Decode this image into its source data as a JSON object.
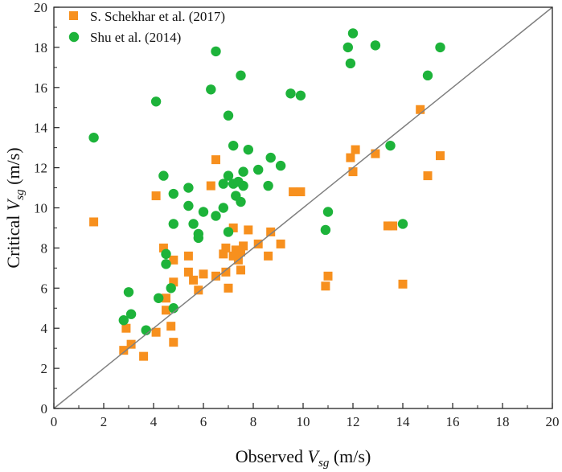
{
  "chart_data": {
    "type": "scatter",
    "title": "",
    "xlabel": {
      "prefix": "Observed ",
      "var": "V",
      "sub": "sg",
      "suffix": " (m/s)"
    },
    "ylabel": {
      "prefix": "Critical ",
      "var": "V",
      "sub": "sg",
      "suffix": " (m/s)"
    },
    "xlim": [
      0,
      20
    ],
    "ylim": [
      0,
      20
    ],
    "xticks": [
      0,
      2,
      4,
      6,
      8,
      10,
      12,
      14,
      16,
      18,
      20
    ],
    "yticks": [
      0,
      2,
      4,
      6,
      8,
      10,
      12,
      14,
      16,
      18,
      20
    ],
    "grid": false,
    "legend_position": "top-left",
    "reference_line": {
      "name": "1:1 line",
      "from": [
        0,
        0
      ],
      "to": [
        20,
        20
      ],
      "color": "#808080"
    },
    "series": [
      {
        "name": "S. Schekhar et al. (2017)",
        "marker": "square",
        "color": "#F7901E",
        "points": [
          [
            1.6,
            9.3
          ],
          [
            2.8,
            2.9
          ],
          [
            2.9,
            4.0
          ],
          [
            3.1,
            3.2
          ],
          [
            3.6,
            2.6
          ],
          [
            4.1,
            3.8
          ],
          [
            4.1,
            10.6
          ],
          [
            4.4,
            8.0
          ],
          [
            4.5,
            5.5
          ],
          [
            4.5,
            4.9
          ],
          [
            4.7,
            4.1
          ],
          [
            4.8,
            3.3
          ],
          [
            4.8,
            6.3
          ],
          [
            4.8,
            7.4
          ],
          [
            5.4,
            6.8
          ],
          [
            5.4,
            7.6
          ],
          [
            5.6,
            6.4
          ],
          [
            5.8,
            5.9
          ],
          [
            6.0,
            6.7
          ],
          [
            6.3,
            11.1
          ],
          [
            6.5,
            12.4
          ],
          [
            6.5,
            6.6
          ],
          [
            6.8,
            7.7
          ],
          [
            6.9,
            8.0
          ],
          [
            6.9,
            6.8
          ],
          [
            7.0,
            6.0
          ],
          [
            7.2,
            9.0
          ],
          [
            7.2,
            7.6
          ],
          [
            7.3,
            7.9
          ],
          [
            7.4,
            7.4
          ],
          [
            7.5,
            7.8
          ],
          [
            7.5,
            6.9
          ],
          [
            7.6,
            8.1
          ],
          [
            7.8,
            8.9
          ],
          [
            8.2,
            8.2
          ],
          [
            8.6,
            7.6
          ],
          [
            8.7,
            8.8
          ],
          [
            9.1,
            8.2
          ],
          [
            9.6,
            10.8
          ],
          [
            9.9,
            10.8
          ],
          [
            10.9,
            6.1
          ],
          [
            11.0,
            6.6
          ],
          [
            11.9,
            12.5
          ],
          [
            12.0,
            11.8
          ],
          [
            12.1,
            12.9
          ],
          [
            12.9,
            12.7
          ],
          [
            13.4,
            9.1
          ],
          [
            13.6,
            9.1
          ],
          [
            14.0,
            6.2
          ],
          [
            14.7,
            14.9
          ],
          [
            15.0,
            11.6
          ],
          [
            15.5,
            12.6
          ]
        ]
      },
      {
        "name": "Shu et al. (2014)",
        "marker": "circle",
        "color": "#1DB33A",
        "points": [
          [
            1.6,
            13.5
          ],
          [
            2.8,
            4.4
          ],
          [
            3.0,
            5.8
          ],
          [
            3.1,
            4.7
          ],
          [
            3.7,
            3.9
          ],
          [
            4.1,
            15.3
          ],
          [
            4.2,
            5.5
          ],
          [
            4.4,
            11.6
          ],
          [
            4.5,
            7.2
          ],
          [
            4.5,
            7.7
          ],
          [
            4.7,
            6.0
          ],
          [
            4.8,
            10.7
          ],
          [
            4.8,
            9.2
          ],
          [
            4.8,
            5.0
          ],
          [
            5.4,
            11.0
          ],
          [
            5.4,
            10.1
          ],
          [
            5.6,
            9.2
          ],
          [
            5.8,
            8.5
          ],
          [
            5.8,
            8.7
          ],
          [
            6.0,
            9.8
          ],
          [
            6.3,
            15.9
          ],
          [
            6.5,
            17.8
          ],
          [
            6.5,
            9.6
          ],
          [
            6.8,
            11.2
          ],
          [
            6.8,
            10.0
          ],
          [
            7.0,
            11.6
          ],
          [
            7.0,
            14.6
          ],
          [
            7.0,
            8.8
          ],
          [
            7.2,
            13.1
          ],
          [
            7.2,
            11.2
          ],
          [
            7.3,
            10.6
          ],
          [
            7.4,
            11.3
          ],
          [
            7.5,
            10.3
          ],
          [
            7.5,
            16.6
          ],
          [
            7.6,
            11.1
          ],
          [
            7.6,
            11.8
          ],
          [
            7.8,
            12.9
          ],
          [
            8.2,
            11.9
          ],
          [
            8.6,
            11.1
          ],
          [
            8.7,
            12.5
          ],
          [
            9.1,
            12.1
          ],
          [
            9.5,
            15.7
          ],
          [
            9.9,
            15.6
          ],
          [
            10.9,
            8.9
          ],
          [
            11.0,
            9.8
          ],
          [
            11.8,
            18.0
          ],
          [
            11.9,
            17.2
          ],
          [
            12.0,
            18.7
          ],
          [
            12.9,
            18.1
          ],
          [
            13.5,
            13.1
          ],
          [
            14.0,
            9.2
          ],
          [
            15.0,
            16.6
          ],
          [
            15.5,
            18.0
          ]
        ]
      }
    ]
  }
}
